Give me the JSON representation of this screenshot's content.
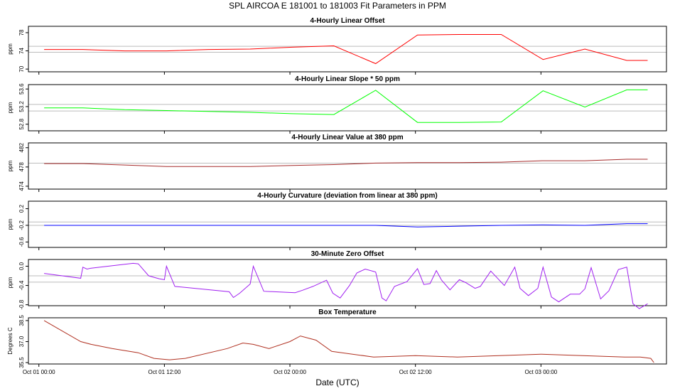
{
  "figure": {
    "title": "SPL   AIRCOA E   181001 to 181003   Fit Parameters in PPM",
    "xlabel": "Date (UTC)",
    "x_ticks": [
      "Oct 01 00:00",
      "Oct 01 12:00",
      "Oct 02 00:00",
      "Oct 02 12:00",
      "Oct 03 00:00"
    ],
    "x_tick_hours": [
      0,
      12,
      24,
      36,
      48
    ],
    "xlim_hours": [
      -1,
      60
    ]
  },
  "chart_data": [
    {
      "type": "line",
      "title": "4-Hourly Linear Offset",
      "ylabel": "ppm",
      "ylim": [
        69.4,
        79.4
      ],
      "yticks": [
        70,
        74,
        78
      ],
      "ytick_labels": [
        "70",
        "74",
        "78"
      ],
      "hlines": [
        73.7,
        75.0
      ],
      "color": "#ff0000",
      "x_hours": [
        0.5,
        4.2,
        8.2,
        12.2,
        16.2,
        20.2,
        24.2,
        28.2,
        32.2,
        36.2,
        40.2,
        44.2,
        48.2,
        52.2,
        56.2,
        58.2
      ],
      "values": [
        74.3,
        74.3,
        74.0,
        74.0,
        74.3,
        74.4,
        74.8,
        75.1,
        71.2,
        77.5,
        77.6,
        77.6,
        72.1,
        74.4,
        71.9,
        71.9
      ]
    },
    {
      "type": "line",
      "title": "4-Hourly Linear Slope * 50 ppm",
      "ylabel": "ppm",
      "ylim": [
        52.65,
        53.7
      ],
      "yticks": [
        52.8,
        53.2,
        53.6
      ],
      "ytick_labels": [
        "52.8",
        "53.2",
        "53.6"
      ],
      "hlines": [
        53.1,
        53.25
      ],
      "color": "#00ff00",
      "x_hours": [
        0.5,
        4.2,
        8.2,
        12.2,
        16.2,
        20.2,
        24.2,
        28.2,
        32.2,
        36.2,
        40.2,
        44.2,
        48.2,
        52.2,
        56.2,
        58.2
      ],
      "values": [
        53.17,
        53.17,
        53.13,
        53.11,
        53.09,
        53.07,
        53.04,
        53.02,
        53.57,
        52.84,
        52.84,
        52.85,
        53.56,
        53.19,
        53.58,
        53.58
      ]
    },
    {
      "type": "line",
      "title": "4-Hourly Linear Value at 380 ppm",
      "ylabel": "ppm",
      "ylim": [
        473.4,
        483.0
      ],
      "yticks": [
        474,
        478,
        482
      ],
      "ytick_labels": [
        "474",
        "478",
        "482"
      ],
      "hlines": [
        478.8
      ],
      "color": "#a52a2a",
      "x_hours": [
        0.5,
        4.2,
        8.2,
        12.2,
        16.2,
        20.2,
        24.2,
        28.2,
        32.2,
        36.2,
        40.2,
        44.2,
        48.2,
        52.2,
        56.2,
        58.2
      ],
      "values": [
        478.7,
        478.7,
        478.4,
        478.1,
        478.1,
        478.1,
        478.3,
        478.5,
        478.8,
        478.9,
        478.9,
        479.0,
        479.3,
        479.3,
        479.6,
        479.6
      ]
    },
    {
      "type": "line",
      "title": "4-Hourly Curvature (deviation from linear at 380 ppm)",
      "ylabel": "ppm",
      "ylim": [
        -0.73,
        0.38
      ],
      "yticks": [
        -0.6,
        -0.2,
        0.2
      ],
      "ytick_labels": [
        "-0.6",
        "-0.2",
        "0.2"
      ],
      "hlines": [
        -0.2,
        -0.12
      ],
      "color": "#0000ff",
      "x_hours": [
        0.5,
        4.2,
        8.2,
        12.2,
        16.2,
        20.2,
        24.2,
        28.2,
        32.2,
        36.2,
        40.2,
        44.2,
        48.2,
        52.2,
        56.2,
        58.2
      ],
      "values": [
        -0.2,
        -0.2,
        -0.2,
        -0.2,
        -0.2,
        -0.2,
        -0.2,
        -0.2,
        -0.2,
        -0.24,
        -0.22,
        -0.2,
        -0.19,
        -0.2,
        -0.16,
        -0.16
      ]
    },
    {
      "type": "line",
      "title": "30-Minute Zero Offset",
      "ylabel": "ppm",
      "ylim": [
        -0.82,
        0.14
      ],
      "yticks": [
        -0.8,
        -0.4,
        0.0
      ],
      "ytick_labels": [
        "-0.8",
        "-0.4",
        "0.0"
      ],
      "hlines": [
        -0.2,
        -0.33
      ],
      "color": "#a020f0",
      "x_hours": [
        0.5,
        4.0,
        4.2,
        4.6,
        5.0,
        9.0,
        9.5,
        10.5,
        11.5,
        12.0,
        12.2,
        13.0,
        18.2,
        18.6,
        19.2,
        20.2,
        20.5,
        21.5,
        24.5,
        25.2,
        26.2,
        27.5,
        28.1,
        28.8,
        29.7,
        30.4,
        31.2,
        32.2,
        32.8,
        33.2,
        34.0,
        35.2,
        36.2,
        36.8,
        37.4,
        38.0,
        38.5,
        39.3,
        40.2,
        40.8,
        41.7,
        42.2,
        43.2,
        44.5,
        45.5,
        46.0,
        46.8,
        47.7,
        48.2,
        49.0,
        49.7,
        50.8,
        51.7,
        52.2,
        52.8,
        53.7,
        54.5,
        55.4,
        56.2,
        56.8,
        57.4,
        58.2
      ],
      "values": [
        -0.15,
        -0.25,
        -0.02,
        -0.06,
        -0.04,
        0.06,
        0.05,
        -0.2,
        -0.26,
        -0.28,
        0.0,
        -0.42,
        -0.53,
        -0.65,
        -0.56,
        -0.37,
        0.0,
        -0.52,
        -0.55,
        -0.5,
        -0.42,
        -0.29,
        -0.56,
        -0.66,
        -0.4,
        -0.14,
        -0.06,
        -0.12,
        -0.66,
        -0.72,
        -0.42,
        -0.32,
        -0.05,
        -0.38,
        -0.36,
        -0.09,
        -0.29,
        -0.49,
        -0.28,
        -0.34,
        -0.46,
        -0.42,
        -0.1,
        -0.4,
        -0.02,
        -0.46,
        -0.61,
        -0.46,
        -0.02,
        -0.64,
        -0.74,
        -0.58,
        -0.58,
        -0.47,
        -0.03,
        -0.68,
        -0.51,
        -0.07,
        -0.02,
        -0.78,
        -0.88,
        -0.78
      ]
    },
    {
      "type": "line",
      "title": "Box Temperature",
      "ylabel": "Degrees C",
      "ylim": [
        35.4,
        38.7
      ],
      "yticks": [
        35.5,
        37.0,
        38.5
      ],
      "ytick_labels": [
        "35.5",
        "37.0",
        "38.5"
      ],
      "hlines": [],
      "color": "#b03020",
      "x_hours": [
        0.5,
        4.0,
        5.0,
        7.0,
        9.5,
        11.0,
        12.5,
        14.0,
        18.0,
        19.5,
        20.5,
        22.0,
        24.0,
        25.0,
        26.5,
        28.0,
        32.0,
        36.0,
        40.0,
        44.0,
        48.0,
        52.0,
        56.0,
        57.5,
        58.5,
        58.8
      ],
      "values": [
        38.5,
        37.0,
        36.8,
        36.5,
        36.2,
        35.8,
        35.7,
        35.8,
        36.5,
        36.9,
        36.8,
        36.5,
        37.0,
        37.4,
        37.1,
        36.3,
        35.9,
        36.0,
        35.9,
        36.0,
        36.1,
        36.0,
        35.9,
        35.9,
        35.8,
        35.5
      ]
    }
  ]
}
